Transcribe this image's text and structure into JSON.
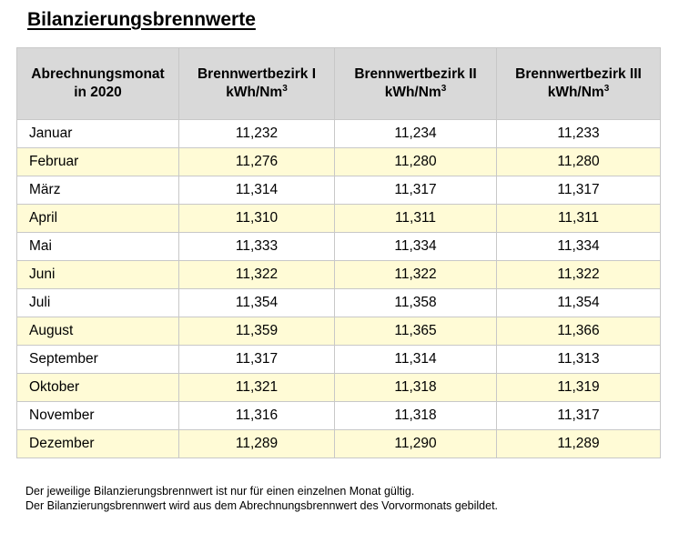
{
  "title": "Bilanzierungsbrennwerte",
  "table": {
    "headers": [
      {
        "line1": "Abrechnungsmonat",
        "line2": "in 2020",
        "sup": ""
      },
      {
        "line1": "Brennwertbezirk I",
        "line2": "kWh/Nm",
        "sup": "3"
      },
      {
        "line1": "Brennwertbezirk II",
        "line2": "kWh/Nm",
        "sup": "3"
      },
      {
        "line1": "Brennwertbezirk III",
        "line2": "kWh/Nm",
        "sup": "3"
      }
    ],
    "rows": [
      {
        "month": "Januar",
        "b1": "11,232",
        "b2": "11,234",
        "b3": "11,233"
      },
      {
        "month": "Februar",
        "b1": "11,276",
        "b2": "11,280",
        "b3": "11,280"
      },
      {
        "month": "März",
        "b1": "11,314",
        "b2": "11,317",
        "b3": "11,317"
      },
      {
        "month": "April",
        "b1": "11,310",
        "b2": "11,311",
        "b3": "11,311"
      },
      {
        "month": "Mai",
        "b1": "11,333",
        "b2": "11,334",
        "b3": "11,334"
      },
      {
        "month": "Juni",
        "b1": "11,322",
        "b2": "11,322",
        "b3": "11,322"
      },
      {
        "month": "Juli",
        "b1": "11,354",
        "b2": "11,358",
        "b3": "11,354"
      },
      {
        "month": "August",
        "b1": "11,359",
        "b2": "11,365",
        "b3": "11,366"
      },
      {
        "month": "September",
        "b1": "11,317",
        "b2": "11,314",
        "b3": "11,313"
      },
      {
        "month": "Oktober",
        "b1": "11,321",
        "b2": "11,318",
        "b3": "11,319"
      },
      {
        "month": "November",
        "b1": "11,316",
        "b2": "11,318",
        "b3": "11,317"
      },
      {
        "month": "Dezember",
        "b1": "11,289",
        "b2": "11,290",
        "b3": "11,289"
      }
    ]
  },
  "footnotes": [
    "Der jeweilige Bilanzierungsbrennwert ist nur für einen einzelnen Monat gültig.",
    "Der Bilanzierungsbrennwert wird aus dem Abrechnungsbrennwert des Vorvormonats gebildet."
  ],
  "colors": {
    "header_bg": "#d9d9d9",
    "stripe_bg": "#fffbd6",
    "border": "#c8c8c8"
  }
}
